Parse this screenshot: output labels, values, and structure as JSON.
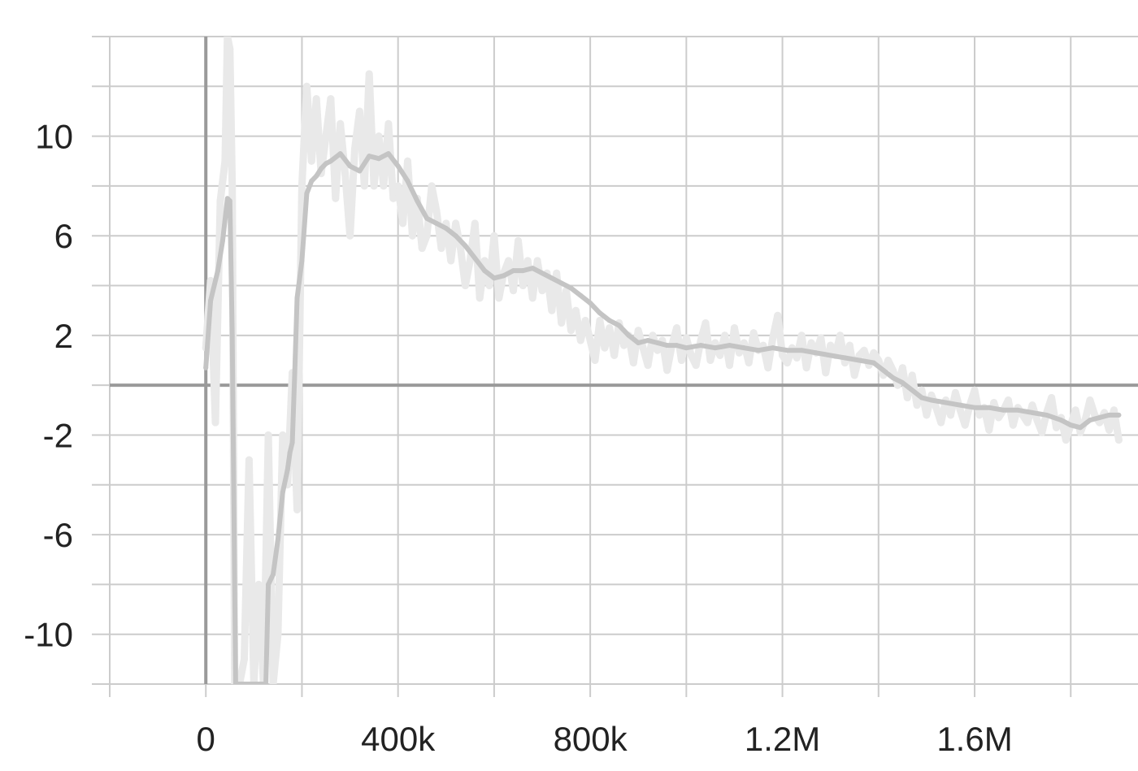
{
  "chart_data": {
    "type": "line",
    "title": "",
    "xlabel": "",
    "ylabel": "",
    "xlim": [
      -200000,
      1940000
    ],
    "ylim": [
      -12,
      14
    ],
    "grid": true,
    "legend": "none",
    "x_ticks": [
      0,
      400000,
      800000,
      1200000,
      1600000
    ],
    "x_tick_labels": [
      "0",
      "400k",
      "800k",
      "1.2M",
      "1.6M"
    ],
    "y_ticks": [
      10,
      6,
      2,
      -2,
      -6,
      -10
    ],
    "y_tick_labels": [
      "10",
      "6",
      "2",
      "-2",
      "-6",
      "-10"
    ],
    "colors": {
      "smoothed": "#c4c4c4",
      "raw": "#e9e9e9",
      "grid": "#cccccc",
      "zero_axis": "#9a9a9a",
      "tick_text": "#222222"
    },
    "series": [
      {
        "role": "smoothed",
        "x": [
          0,
          10000,
          25000,
          35000,
          45000,
          50000,
          55000,
          60000,
          62000,
          70000,
          80000,
          100000,
          115000,
          125000,
          130000,
          140000,
          150000,
          160000,
          170000,
          175000,
          180000,
          185000,
          190000,
          200000,
          210000,
          220000,
          230000,
          240000,
          250000,
          260000,
          280000,
          300000,
          320000,
          340000,
          360000,
          380000,
          400000,
          420000,
          440000,
          460000,
          480000,
          500000,
          520000,
          540000,
          560000,
          580000,
          600000,
          620000,
          640000,
          660000,
          680000,
          700000,
          720000,
          740000,
          760000,
          780000,
          800000,
          820000,
          840000,
          860000,
          880000,
          900000,
          920000,
          940000,
          960000,
          980000,
          1000000,
          1030000,
          1060000,
          1090000,
          1120000,
          1150000,
          1180000,
          1210000,
          1240000,
          1270000,
          1300000,
          1330000,
          1360000,
          1390000,
          1410000,
          1430000,
          1450000,
          1470000,
          1490000,
          1510000,
          1540000,
          1570000,
          1600000,
          1630000,
          1660000,
          1690000,
          1720000,
          1750000,
          1780000,
          1800000,
          1820000,
          1840000,
          1860000,
          1880000,
          1900000
        ],
        "values": [
          0.7,
          3.4,
          4.6,
          5.8,
          7.5,
          7.4,
          2.0,
          -8.0,
          -12.0,
          -12.0,
          -12.0,
          -12.0,
          -12.0,
          -12.0,
          -8.0,
          -7.6,
          -6.2,
          -4.3,
          -3.4,
          -2.7,
          -2.3,
          0.5,
          3.5,
          5.0,
          7.7,
          8.2,
          8.4,
          8.7,
          8.9,
          9.0,
          9.3,
          8.8,
          8.6,
          9.2,
          9.1,
          9.3,
          8.8,
          8.2,
          7.4,
          6.7,
          6.5,
          6.3,
          6.0,
          5.6,
          5.1,
          4.6,
          4.3,
          4.4,
          4.6,
          4.6,
          4.7,
          4.5,
          4.3,
          4.1,
          3.9,
          3.6,
          3.3,
          2.9,
          2.6,
          2.4,
          2.0,
          1.7,
          1.8,
          1.7,
          1.6,
          1.6,
          1.5,
          1.6,
          1.5,
          1.6,
          1.5,
          1.4,
          1.5,
          1.4,
          1.4,
          1.3,
          1.2,
          1.1,
          1.0,
          0.9,
          0.6,
          0.3,
          0.1,
          -0.2,
          -0.5,
          -0.6,
          -0.7,
          -0.8,
          -0.9,
          -0.9,
          -1.0,
          -1.0,
          -1.1,
          -1.2,
          -1.4,
          -1.6,
          -1.7,
          -1.4,
          -1.3,
          -1.2,
          -1.2
        ]
      },
      {
        "role": "raw",
        "x": [
          0,
          10000,
          20000,
          30000,
          40000,
          45000,
          50000,
          55000,
          60000,
          70000,
          80000,
          90000,
          100000,
          110000,
          120000,
          130000,
          140000,
          150000,
          160000,
          170000,
          180000,
          190000,
          200000,
          210000,
          220000,
          230000,
          240000,
          250000,
          260000,
          270000,
          280000,
          290000,
          300000,
          310000,
          320000,
          330000,
          340000,
          350000,
          360000,
          370000,
          380000,
          390000,
          400000,
          410000,
          420000,
          430000,
          440000,
          450000,
          460000,
          470000,
          480000,
          490000,
          500000,
          510000,
          520000,
          530000,
          540000,
          550000,
          560000,
          570000,
          580000,
          590000,
          600000,
          610000,
          620000,
          630000,
          640000,
          650000,
          660000,
          670000,
          680000,
          690000,
          700000,
          710000,
          720000,
          730000,
          740000,
          750000,
          760000,
          770000,
          780000,
          790000,
          800000,
          810000,
          820000,
          830000,
          840000,
          850000,
          860000,
          870000,
          880000,
          890000,
          900000,
          910000,
          920000,
          930000,
          940000,
          950000,
          960000,
          970000,
          980000,
          990000,
          1000000,
          1010000,
          1020000,
          1030000,
          1040000,
          1050000,
          1060000,
          1070000,
          1080000,
          1090000,
          1100000,
          1110000,
          1120000,
          1130000,
          1140000,
          1150000,
          1160000,
          1170000,
          1180000,
          1190000,
          1200000,
          1210000,
          1220000,
          1230000,
          1240000,
          1250000,
          1260000,
          1270000,
          1280000,
          1290000,
          1300000,
          1310000,
          1320000,
          1330000,
          1340000,
          1350000,
          1360000,
          1370000,
          1380000,
          1390000,
          1400000,
          1410000,
          1420000,
          1430000,
          1440000,
          1450000,
          1460000,
          1470000,
          1480000,
          1490000,
          1500000,
          1510000,
          1520000,
          1530000,
          1540000,
          1550000,
          1560000,
          1570000,
          1580000,
          1590000,
          1600000,
          1610000,
          1620000,
          1630000,
          1640000,
          1650000,
          1660000,
          1670000,
          1680000,
          1690000,
          1700000,
          1710000,
          1720000,
          1730000,
          1740000,
          1750000,
          1760000,
          1770000,
          1780000,
          1790000,
          1800000,
          1810000,
          1820000,
          1830000,
          1840000,
          1850000,
          1860000,
          1870000,
          1880000,
          1890000,
          1900000
        ],
        "values": [
          1.5,
          4.2,
          -1.5,
          7.4,
          9.0,
          14.0,
          13.5,
          8.0,
          -12.0,
          -12.0,
          -11.0,
          -3.0,
          -12.0,
          -8.0,
          -12.0,
          -2.0,
          -12.0,
          -10.0,
          -2.0,
          -4.0,
          0.5,
          -5.0,
          8.0,
          12.0,
          9.0,
          11.5,
          8.5,
          10.0,
          11.5,
          7.5,
          10.5,
          8.5,
          6.0,
          9.5,
          11.0,
          8.0,
          12.5,
          8.0,
          10.0,
          8.0,
          10.5,
          7.5,
          8.0,
          6.5,
          9.0,
          6.0,
          7.5,
          5.5,
          6.0,
          8.0,
          7.0,
          5.5,
          6.5,
          5.0,
          6.5,
          5.5,
          4.0,
          5.0,
          6.5,
          3.5,
          5.0,
          4.0,
          6.0,
          3.5,
          4.5,
          5.0,
          3.8,
          5.8,
          4.0,
          5.0,
          3.5,
          5.0,
          3.8,
          4.5,
          3.0,
          4.5,
          2.5,
          3.8,
          2.2,
          3.0,
          1.8,
          2.6,
          1.8,
          1.0,
          2.6,
          1.5,
          2.3,
          1.2,
          2.5,
          1.6,
          2.0,
          0.9,
          2.2,
          1.5,
          0.8,
          2.0,
          1.4,
          1.8,
          0.6,
          1.6,
          2.3,
          1.0,
          1.9,
          1.2,
          0.8,
          1.8,
          2.5,
          1.0,
          1.7,
          1.2,
          2.0,
          0.8,
          2.3,
          1.3,
          1.7,
          0.9,
          2.1,
          1.4,
          1.6,
          0.7,
          1.9,
          2.8,
          1.2,
          0.9,
          1.5,
          1.1,
          2.0,
          0.7,
          1.7,
          1.3,
          1.9,
          0.5,
          1.6,
          1.2,
          2.0,
          0.9,
          1.6,
          0.4,
          1.2,
          1.4,
          0.8,
          1.3,
          1.0,
          0.4,
          1.0,
          0.6,
          0.0,
          0.7,
          -0.5,
          0.4,
          -0.8,
          -0.2,
          -1.2,
          -0.4,
          -0.9,
          -1.5,
          -0.6,
          -1.2,
          -0.3,
          -1.0,
          -1.6,
          -0.8,
          -0.2,
          -1.2,
          -0.9,
          -1.8,
          -0.7,
          -1.3,
          -1.0,
          -0.6,
          -1.6,
          -0.9,
          -1.2,
          -1.5,
          -0.8,
          -1.4,
          -1.9,
          -1.1,
          -0.5,
          -1.7,
          -1.3,
          -2.2,
          -1.6,
          -1.0,
          -1.9,
          -1.4,
          -0.6,
          -1.2,
          -1.5,
          -1.1,
          -1.8,
          -1.0,
          -2.2
        ]
      }
    ]
  }
}
